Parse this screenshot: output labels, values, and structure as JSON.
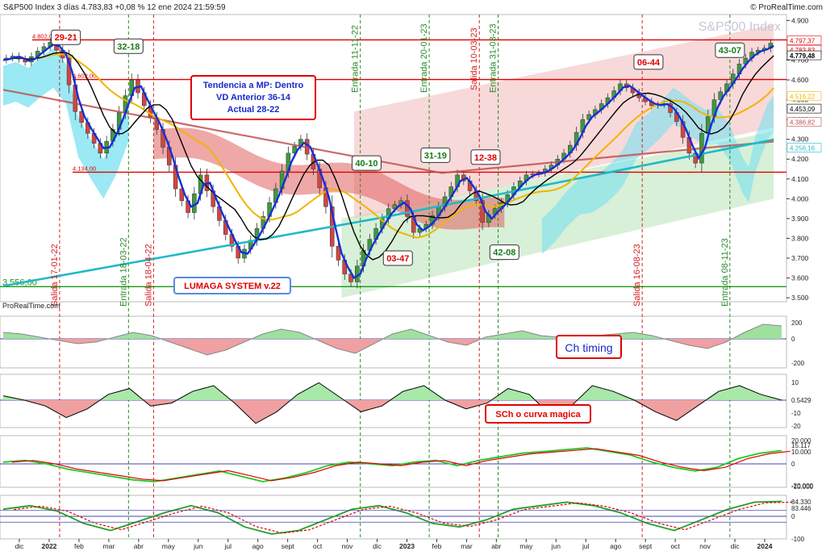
{
  "header": {
    "title": "S&P500 Index 3 días 4.783,83 +0,08 % 12 ene 2024 21:59:59",
    "brand_right": "© ProRealTime.com",
    "watermark": "S&P500 Index",
    "brand_left": "ProRealTime.com"
  },
  "colors": {
    "up_candle": "#3e9a3e",
    "down_candle": "#d2453f",
    "red_line": "#e00000",
    "trend_blue": "#1230d8",
    "black_line": "#000000",
    "orange_ma": "#f0b400",
    "cyan_ma": "#22b8c8",
    "brown_ma": "#c05050",
    "cloud_cyan": "#6fe0f0",
    "cloud_red": "#e06060",
    "channel_red": "#f4c4c4",
    "channel_green": "#cdeccd",
    "vline_green": "#2a8a2a",
    "vline_red": "#d42020"
  },
  "chart_data": {
    "type": "candlestick",
    "instrument": "S&P500 Index",
    "timeframe": "3 días",
    "x_tick_labels": [
      "dic",
      "2022",
      "feb",
      "mar",
      "abr",
      "may",
      "jun",
      "jul",
      "ago",
      "sept",
      "oct",
      "nov",
      "dic",
      "2023",
      "feb",
      "mar",
      "abr",
      "may",
      "jun",
      "jul",
      "ago",
      "sept",
      "oct",
      "nov",
      "dic",
      "2024"
    ],
    "y_tick_labels": [
      "4.900",
      "4.800",
      "4.700",
      "4.600",
      "4.500",
      "4.400",
      "4.300",
      "4.200",
      "4.100",
      "4.000",
      "3.900",
      "3.800",
      "3.700",
      "3.600",
      "3.500"
    ],
    "ylim": [
      3480,
      4930
    ],
    "price_series": [
      [
        0,
        4700
      ],
      [
        2,
        4720
      ],
      [
        4,
        4690
      ],
      [
        6,
        4745
      ],
      [
        8,
        4790
      ],
      [
        10,
        4710
      ],
      [
        12,
        4440
      ],
      [
        14,
        4330
      ],
      [
        16,
        4230
      ],
      [
        18,
        4350
      ],
      [
        20,
        4520
      ],
      [
        21,
        4600
      ],
      [
        23,
        4470
      ],
      [
        25,
        4350
      ],
      [
        27,
        4170
      ],
      [
        28,
        4050
      ],
      [
        30,
        3930
      ],
      [
        32,
        4120
      ],
      [
        34,
        3960
      ],
      [
        36,
        3820
      ],
      [
        38,
        3700
      ],
      [
        40,
        3790
      ],
      [
        42,
        3910
      ],
      [
        44,
        4050
      ],
      [
        46,
        4230
      ],
      [
        48,
        4300
      ],
      [
        50,
        4150
      ],
      [
        52,
        3960
      ],
      [
        53,
        3760
      ],
      [
        55,
        3620
      ],
      [
        56,
        3580
      ],
      [
        58,
        3740
      ],
      [
        60,
        3850
      ],
      [
        62,
        3950
      ],
      [
        64,
        3990
      ],
      [
        66,
        3830
      ],
      [
        68,
        3870
      ],
      [
        70,
        3960
      ],
      [
        72,
        4060
      ],
      [
        73,
        4120
      ],
      [
        74,
        4090
      ],
      [
        76,
        3990
      ],
      [
        77,
        3880
      ],
      [
        78,
        3920
      ],
      [
        80,
        3980
      ],
      [
        82,
        4060
      ],
      [
        84,
        4120
      ],
      [
        86,
        4130
      ],
      [
        88,
        4170
      ],
      [
        90,
        4230
      ],
      [
        91,
        4270
      ],
      [
        93,
        4400
      ],
      [
        95,
        4450
      ],
      [
        97,
        4510
      ],
      [
        99,
        4580
      ],
      [
        100,
        4560
      ],
      [
        102,
        4510
      ],
      [
        104,
        4470
      ],
      [
        106,
        4480
      ],
      [
        108,
        4390
      ],
      [
        110,
        4230
      ],
      [
        111,
        4180
      ],
      [
        112,
        4330
      ],
      [
        114,
        4500
      ],
      [
        116,
        4580
      ],
      [
        118,
        4680
      ],
      [
        120,
        4740
      ],
      [
        122,
        4760
      ],
      [
        123,
        4785
      ]
    ],
    "horizontal_levels": [
      {
        "value": 4802,
        "label": "4.802,00"
      },
      {
        "value": 4602,
        "label": "4.602,00"
      },
      {
        "value": 4134,
        "label": "4.134,00"
      },
      {
        "value": 3556,
        "label": "3.556,00"
      }
    ],
    "right_price_labels": [
      "4.797,37",
      "4.783,83",
      "4.779,48",
      "4.516,22",
      "4.453,09",
      "4.386,82",
      "4.256,16"
    ],
    "signals": [
      {
        "label": "Salida 17-01-22",
        "type": "exit",
        "pos": 9
      },
      {
        "label": "Entrada 18-03-22",
        "type": "entry",
        "pos": 20
      },
      {
        "label": "Salida 18-04-22",
        "type": "exit",
        "pos": 24
      },
      {
        "label": "Entrada 11-11-22",
        "type": "entry",
        "pos": 57
      },
      {
        "label": "Entrada 20-01-23",
        "type": "entry",
        "pos": 68
      },
      {
        "label": "Salida 10-03-23",
        "type": "exit",
        "pos": 76
      },
      {
        "label": "Entrada 31-03-23",
        "type": "entry",
        "pos": 79
      },
      {
        "label": "Salida 16-08-23",
        "type": "exit",
        "pos": 102
      },
      {
        "label": "Entrada 08-11-23",
        "type": "entry",
        "pos": 116
      }
    ],
    "box_labels": [
      {
        "text": "29-21",
        "color": "red",
        "pos": 10,
        "value": 4815
      },
      {
        "text": "32-18",
        "color": "green",
        "pos": 20,
        "value": 4770
      },
      {
        "text": "40-10",
        "color": "green",
        "pos": 58,
        "value": 4180
      },
      {
        "text": "31-19",
        "color": "green",
        "pos": 69,
        "value": 4220
      },
      {
        "text": "12-38",
        "color": "red",
        "pos": 77,
        "value": 4210
      },
      {
        "text": "03-47",
        "color": "red",
        "pos": 63,
        "value": 3700
      },
      {
        "text": "42-08",
        "color": "green",
        "pos": 80,
        "value": 3730
      },
      {
        "text": "06-44",
        "color": "red",
        "pos": 103,
        "value": 4690
      },
      {
        "text": "43-07",
        "color": "green",
        "pos": 116,
        "value": 4750
      }
    ],
    "info_box": [
      "Tendencia a MP: Dentro",
      "VD Anterior 36-14",
      "Actual 28-22"
    ],
    "system_label": "LUMAGA SYSTEM v.22",
    "indicator_panels": [
      {
        "name": "Ch timing",
        "ticks": [
          "200",
          "0",
          "-200"
        ],
        "values": [
          80,
          60,
          20,
          -20,
          -60,
          -40,
          20,
          80,
          40,
          -40,
          -120,
          -200,
          -140,
          -40,
          60,
          120,
          80,
          -20,
          -120,
          -180,
          -60,
          60,
          120,
          40,
          -40,
          -80,
          20,
          60,
          100,
          40,
          20,
          -10,
          40,
          60,
          80,
          40,
          -20,
          -80,
          -120,
          -40,
          80,
          180,
          160
        ]
      },
      {
        "name": "SCh o curva magica",
        "ticks": [
          "10",
          "0.5429",
          "-10",
          "-20"
        ],
        "values": [
          3,
          0,
          -4,
          -12,
          -6,
          4,
          8,
          -4,
          -2,
          6,
          10,
          -2,
          -16,
          -8,
          4,
          12,
          2,
          -8,
          -4,
          6,
          10,
          0,
          -6,
          -2,
          8,
          4,
          -10,
          -4,
          10,
          6,
          0,
          -8,
          -14,
          -4,
          6,
          10,
          4,
          0
        ]
      },
      {
        "name": "",
        "ticks": [
          "20.000",
          "15.117",
          "10.000",
          "0",
          "-10.000",
          "-20.000"
        ],
        "values": [
          2,
          4,
          0,
          -6,
          -10,
          -14,
          -18,
          -20,
          -16,
          -12,
          -8,
          -14,
          -20,
          -16,
          -10,
          -2,
          2,
          0,
          -2,
          2,
          4,
          -2,
          4,
          8,
          12,
          14,
          16,
          18,
          14,
          10,
          2,
          -4,
          -8,
          -4,
          6,
          12,
          15
        ]
      },
      {
        "name": "",
        "ticks": [
          "84.330",
          "83.446",
          "0",
          "-100"
        ],
        "values": [
          40,
          60,
          30,
          -40,
          -80,
          -30,
          20,
          60,
          20,
          -60,
          -100,
          -80,
          -20,
          40,
          60,
          20,
          -40,
          -60,
          -20,
          40,
          60,
          80,
          60,
          20,
          -40,
          -80,
          -20,
          40,
          80,
          84
        ]
      }
    ]
  }
}
